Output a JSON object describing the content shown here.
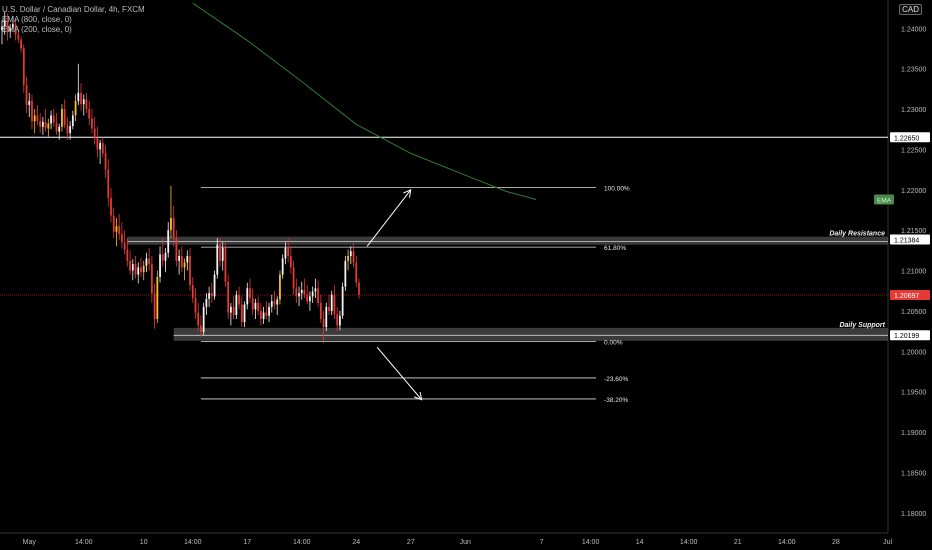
{
  "legend": {
    "symbol": "U.S. Dollar / Canadian Dollar, 4h, FXCM",
    "ema800": "EMA (800, close, 0)",
    "ema200": "EMA (200, close, 0)"
  },
  "currency_label": "CAD",
  "chart_data": {
    "type": "candlestick",
    "title": "U.S. Dollar / Canadian Dollar, 4h, FXCM",
    "yticks": [
      "1.24000",
      "1.23500",
      "1.23000",
      "1.22500",
      "1.22000",
      "1.21500",
      "1.21000",
      "1.20500",
      "1.20000",
      "1.19500",
      "1.19000",
      "1.18500",
      "1.18000"
    ],
    "ylim": [
      1.1775,
      1.2435
    ],
    "xticks": [
      {
        "label": "May",
        "i": 10
      },
      {
        "label": "14:00",
        "i": 30
      },
      {
        "label": "10",
        "i": 52
      },
      {
        "label": "14:00",
        "i": 70
      },
      {
        "label": "17",
        "i": 90
      },
      {
        "label": "14:00",
        "i": 110
      },
      {
        "label": "24",
        "i": 130
      },
      {
        "label": "27",
        "i": 150
      },
      {
        "label": "Jun",
        "i": 170
      },
      {
        "label": "7",
        "i": 198
      },
      {
        "label": "14:00",
        "i": 216
      },
      {
        "label": "14",
        "i": 234
      },
      {
        "label": "14:00",
        "i": 252
      },
      {
        "label": "21",
        "i": 270
      },
      {
        "label": "14:00",
        "i": 288
      },
      {
        "label": "28",
        "i": 306
      },
      {
        "label": "Jul",
        "i": 325
      }
    ],
    "price_labels": [
      {
        "value": "1.22650",
        "price": 1.2265,
        "color": "#ffffff",
        "text_color": "#000000"
      },
      {
        "value": "1.21384",
        "price": 1.21384,
        "color": "#ffffff",
        "text_color": "#000000"
      },
      {
        "value": "1.20697",
        "price": 1.20697,
        "color": "#e53935",
        "text_color": "#ffffff"
      },
      {
        "value": "1.20199",
        "price": 1.20199,
        "color": "#ffffff",
        "text_color": "#000000"
      }
    ],
    "ema_badge": "EMA",
    "horizontal_lines": [
      {
        "price": 1.2265,
        "color": "#ffffff"
      },
      {
        "price": 1.20697,
        "color": "#b71c1c",
        "dashed": true
      }
    ],
    "zones": [
      {
        "name": "Daily Resistance",
        "top": 1.2142,
        "bottom": 1.2132,
        "from_i": 46
      },
      {
        "name": "Daily Support",
        "top": 1.2029,
        "bottom": 1.2013,
        "from_i": 63
      }
    ],
    "fibonacci": [
      {
        "label": "100.00%",
        "price": 1.2203
      },
      {
        "label": "61.80%",
        "price": 1.2129
      },
      {
        "label": "0.00%",
        "price": 1.2012
      },
      {
        "label": "-23.60%",
        "price": 1.1967
      },
      {
        "label": "-38.20%",
        "price": 1.1941
      }
    ],
    "fib_from_i": 73,
    "fib_to_i": 218,
    "candle_colors": {
      "up": "#f2f2f2",
      "down": "#e53935",
      "mixed_up": "#f6c12b"
    },
    "ema200": [
      [
        70,
        1.2431
      ],
      [
        90,
        1.2385
      ],
      [
        110,
        1.2334
      ],
      [
        130,
        1.2281
      ],
      [
        150,
        1.2245
      ],
      [
        170,
        1.2218
      ],
      [
        185,
        1.2198
      ],
      [
        196,
        1.2188
      ]
    ],
    "ohlc": [
      [
        1.2398,
        1.241,
        1.238,
        1.2402
      ],
      [
        1.2402,
        1.242,
        1.2392,
        1.241
      ],
      [
        1.241,
        1.2418,
        1.2385,
        1.2396
      ],
      [
        1.2396,
        1.2405,
        1.2388,
        1.24
      ],
      [
        1.24,
        1.2415,
        1.2395,
        1.2405
      ],
      [
        1.2405,
        1.241,
        1.2385,
        1.2392
      ],
      [
        1.2392,
        1.2398,
        1.2382,
        1.2386
      ],
      [
        1.2386,
        1.239,
        1.237,
        1.2375
      ],
      [
        1.2375,
        1.238,
        1.232,
        1.233
      ],
      [
        1.233,
        1.234,
        1.2295,
        1.2305
      ],
      [
        1.2305,
        1.232,
        1.229,
        1.231
      ],
      [
        1.231,
        1.2318,
        1.2275,
        1.2285
      ],
      [
        1.2285,
        1.23,
        1.227,
        1.2292
      ],
      [
        1.2292,
        1.2305,
        1.228,
        1.2285
      ],
      [
        1.2285,
        1.2295,
        1.227,
        1.2278
      ],
      [
        1.2278,
        1.229,
        1.2268,
        1.2284
      ],
      [
        1.2284,
        1.23,
        1.2272,
        1.2276
      ],
      [
        1.2276,
        1.2288,
        1.2266,
        1.2282
      ],
      [
        1.2282,
        1.2298,
        1.2275,
        1.2292
      ],
      [
        1.2292,
        1.23,
        1.2278,
        1.2283
      ],
      [
        1.2283,
        1.2295,
        1.2268,
        1.2272
      ],
      [
        1.2272,
        1.2282,
        1.2262,
        1.2278
      ],
      [
        1.2278,
        1.2306,
        1.2272,
        1.23
      ],
      [
        1.23,
        1.2312,
        1.2276,
        1.228
      ],
      [
        1.228,
        1.229,
        1.2262,
        1.227
      ],
      [
        1.227,
        1.2285,
        1.2262,
        1.2279
      ],
      [
        1.2279,
        1.2298,
        1.2275,
        1.2292
      ],
      [
        1.2292,
        1.2318,
        1.2285,
        1.231
      ],
      [
        1.231,
        1.2356,
        1.2305,
        1.232
      ],
      [
        1.232,
        1.2332,
        1.2298,
        1.2306
      ],
      [
        1.2306,
        1.2318,
        1.2292,
        1.2312
      ],
      [
        1.2312,
        1.232,
        1.2295,
        1.23
      ],
      [
        1.23,
        1.231,
        1.228,
        1.2288
      ],
      [
        1.2288,
        1.23,
        1.227,
        1.2276
      ],
      [
        1.2276,
        1.229,
        1.2256,
        1.2264
      ],
      [
        1.2264,
        1.2278,
        1.224,
        1.225
      ],
      [
        1.225,
        1.2262,
        1.2232,
        1.2258
      ],
      [
        1.2258,
        1.2265,
        1.224,
        1.2245
      ],
      [
        1.2245,
        1.2255,
        1.2215,
        1.2225
      ],
      [
        1.2225,
        1.2238,
        1.218,
        1.219
      ],
      [
        1.219,
        1.2202,
        1.216,
        1.2168
      ],
      [
        1.2168,
        1.2178,
        1.214,
        1.2148
      ],
      [
        1.2148,
        1.2165,
        1.213,
        1.2155
      ],
      [
        1.2155,
        1.217,
        1.2138,
        1.2145
      ],
      [
        1.2145,
        1.216,
        1.2128,
        1.2135
      ],
      [
        1.2135,
        1.215,
        1.212,
        1.2126
      ],
      [
        1.2126,
        1.214,
        1.2105,
        1.2112
      ],
      [
        1.2112,
        1.2125,
        1.2095,
        1.21
      ],
      [
        1.21,
        1.2114,
        1.2088,
        1.2108
      ],
      [
        1.2108,
        1.2118,
        1.209,
        1.2095
      ],
      [
        1.2095,
        1.211,
        1.2084,
        1.2104
      ],
      [
        1.2104,
        1.2116,
        1.2092,
        1.2098
      ],
      [
        1.2098,
        1.2112,
        1.2088,
        1.2106
      ],
      [
        1.2106,
        1.2122,
        1.2098,
        1.2115
      ],
      [
        1.2115,
        1.2128,
        1.21,
        1.2108
      ],
      [
        1.2108,
        1.2118,
        1.206,
        1.2072
      ],
      [
        1.2072,
        1.2084,
        1.2028,
        1.204
      ],
      [
        1.204,
        1.21,
        1.2035,
        1.2092
      ],
      [
        1.2092,
        1.213,
        1.2085,
        1.212
      ],
      [
        1.212,
        1.214,
        1.2105,
        1.2112
      ],
      [
        1.2112,
        1.2128,
        1.2098,
        1.2122
      ],
      [
        1.2122,
        1.216,
        1.2116,
        1.215
      ],
      [
        1.215,
        1.2205,
        1.214,
        1.2165
      ],
      [
        1.2165,
        1.218,
        1.213,
        1.214
      ],
      [
        1.214,
        1.215,
        1.2105,
        1.2112
      ],
      [
        1.2112,
        1.2126,
        1.2095,
        1.2118
      ],
      [
        1.2118,
        1.213,
        1.2098,
        1.2104
      ],
      [
        1.2104,
        1.2115,
        1.2088,
        1.211
      ],
      [
        1.211,
        1.2125,
        1.21,
        1.2118
      ],
      [
        1.2118,
        1.2128,
        1.2075,
        1.2082
      ],
      [
        1.2082,
        1.2092,
        1.206,
        1.2066
      ],
      [
        1.2066,
        1.2078,
        1.204,
        1.2048
      ],
      [
        1.2048,
        1.206,
        1.2025,
        1.2032
      ],
      [
        1.2032,
        1.2044,
        1.2018,
        1.2024
      ],
      [
        1.2024,
        1.206,
        1.202,
        1.2055
      ],
      [
        1.2055,
        1.2072,
        1.2045,
        1.2065
      ],
      [
        1.2065,
        1.208,
        1.2055,
        1.2072
      ],
      [
        1.2072,
        1.2085,
        1.206,
        1.2068
      ],
      [
        1.2068,
        1.21,
        1.2064,
        1.2095
      ],
      [
        1.2095,
        1.214,
        1.209,
        1.2132
      ],
      [
        1.2132,
        1.214,
        1.2105,
        1.2112
      ],
      [
        1.2112,
        1.2135,
        1.21,
        1.2128
      ],
      [
        1.2128,
        1.2134,
        1.208,
        1.2086
      ],
      [
        1.2086,
        1.2095,
        1.204,
        1.2048
      ],
      [
        1.2048,
        1.206,
        1.2032,
        1.2055
      ],
      [
        1.2055,
        1.2068,
        1.204,
        1.2045
      ],
      [
        1.2045,
        1.2075,
        1.204,
        1.207
      ],
      [
        1.207,
        1.208,
        1.2052,
        1.2058
      ],
      [
        1.2058,
        1.2068,
        1.203,
        1.2036
      ],
      [
        1.2036,
        1.2062,
        1.203,
        1.2058
      ],
      [
        1.2058,
        1.2085,
        1.2052,
        1.2078
      ],
      [
        1.2078,
        1.209,
        1.206,
        1.2066
      ],
      [
        1.2066,
        1.2078,
        1.2045,
        1.2052
      ],
      [
        1.2052,
        1.2065,
        1.204,
        1.206
      ],
      [
        1.206,
        1.2068,
        1.2045,
        1.205
      ],
      [
        1.205,
        1.206,
        1.2032,
        1.204
      ],
      [
        1.204,
        1.2055,
        1.2034,
        1.2048
      ],
      [
        1.2048,
        1.2062,
        1.204,
        1.2044
      ],
      [
        1.2044,
        1.206,
        1.2036,
        1.2055
      ],
      [
        1.2055,
        1.207,
        1.2048,
        1.2062
      ],
      [
        1.2062,
        1.2075,
        1.2052,
        1.2058
      ],
      [
        1.2058,
        1.2068,
        1.2045,
        1.2064
      ],
      [
        1.2064,
        1.21,
        1.2058,
        1.2095
      ],
      [
        1.2095,
        1.212,
        1.209,
        1.2115
      ],
      [
        1.2115,
        1.2135,
        1.2108,
        1.2128
      ],
      [
        1.2128,
        1.214,
        1.211,
        1.2118
      ],
      [
        1.2118,
        1.213,
        1.2096,
        1.2104
      ],
      [
        1.2104,
        1.2112,
        1.207,
        1.2078
      ],
      [
        1.2078,
        1.209,
        1.206,
        1.2068
      ],
      [
        1.2068,
        1.208,
        1.2056,
        1.2072
      ],
      [
        1.2072,
        1.2086,
        1.2064,
        1.2076
      ],
      [
        1.2076,
        1.209,
        1.2066,
        1.207
      ],
      [
        1.207,
        1.2082,
        1.2058,
        1.2062
      ],
      [
        1.2062,
        1.2074,
        1.205,
        1.2068
      ],
      [
        1.2068,
        1.208,
        1.206,
        1.2074
      ],
      [
        1.2074,
        1.209,
        1.2066,
        1.2078
      ],
      [
        1.2078,
        1.2088,
        1.2055,
        1.206
      ],
      [
        1.206,
        1.207,
        1.2035,
        1.204
      ],
      [
        1.204,
        1.205,
        1.201,
        1.203
      ],
      [
        1.203,
        1.206,
        1.2025,
        1.2055
      ],
      [
        1.2055,
        1.207,
        1.2045,
        1.205
      ],
      [
        1.205,
        1.2075,
        1.2045,
        1.207
      ],
      [
        1.207,
        1.2082,
        1.204,
        1.2046
      ],
      [
        1.2046,
        1.2055,
        1.2025,
        1.2032
      ],
      [
        1.2032,
        1.205,
        1.2026,
        1.2044
      ],
      [
        1.2044,
        1.2085,
        1.204,
        1.208
      ],
      [
        1.208,
        1.2118,
        1.2075,
        1.2112
      ],
      [
        1.2112,
        1.2126,
        1.21,
        1.2118
      ],
      [
        1.2118,
        1.213,
        1.2108,
        1.2124
      ],
      [
        1.2124,
        1.2134,
        1.2104,
        1.211
      ],
      [
        1.211,
        1.2118,
        1.208,
        1.2085
      ],
      [
        1.2085,
        1.209,
        1.2065,
        1.207
      ]
    ]
  }
}
